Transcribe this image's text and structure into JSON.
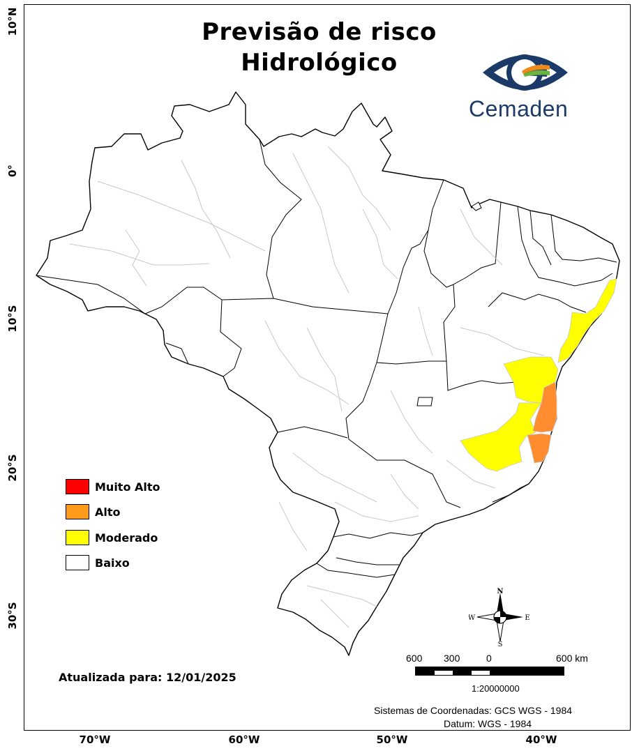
{
  "title_line1": "Previsão de risco",
  "title_line2": "Hidrológico",
  "logo": {
    "text": "Cemaden",
    "icon": "cemaden-eye-logo-icon",
    "color": "#1b3a68"
  },
  "lat_labels": [
    "10°N",
    "0°",
    "10°S",
    "20°S",
    "30°S"
  ],
  "lon_labels": [
    "70°W",
    "60°W",
    "50°W",
    "40°W"
  ],
  "legend": [
    {
      "label": "Muito Alto",
      "color": "#ff0000"
    },
    {
      "label": "Alto",
      "color": "#ff9a1a"
    },
    {
      "label": "Moderado",
      "color": "#ffff00"
    },
    {
      "label": "Baixo",
      "color": "#ffffff"
    }
  ],
  "update_text": "Atualizada para: 12/01/2025",
  "north_arrow": {
    "n": "N",
    "s": "S",
    "e": "E",
    "w": "W",
    "icon": "compass-rose-icon"
  },
  "scale_bar": {
    "labels": [
      "600",
      "300",
      "0",
      "600 km"
    ],
    "ratio": "1:20000000"
  },
  "coordinate_system": "Sistemas de Coordenadas: GCS WGS - 1984",
  "datum": "Datum: WGS - 1984",
  "colors": {
    "moderate": "#ffff00",
    "high": "#ff8c2e",
    "boundary": "#000000",
    "internal_boundary": "#c8c8c8"
  }
}
